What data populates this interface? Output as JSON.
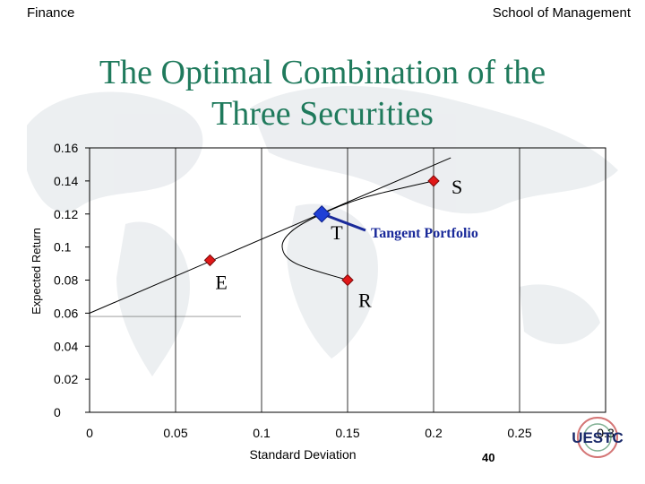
{
  "header": {
    "left": "Finance",
    "right": "School of Management"
  },
  "slide": {
    "title_line1": "The Optimal Combination of the",
    "title_line2": "Three Securities",
    "page_number": "40",
    "logo_text": "UESTC"
  },
  "colors": {
    "title": "#1f7a5c",
    "blue_marker": "#1f3fd6",
    "red_marker": "#e01818",
    "tangent_label": "#1a2a9a"
  },
  "chart_data": {
    "type": "line",
    "title": "",
    "xlabel": "Standard Deviation",
    "ylabel": "Expected Return",
    "xlim": [
      0,
      0.3
    ],
    "ylim": [
      0,
      0.16
    ],
    "x_ticks": [
      0,
      0.05,
      0.1,
      0.15,
      0.2,
      0.25,
      0.3
    ],
    "x_tick_labels": [
      "0",
      "0.05",
      "0.1",
      "0.15",
      "0.2",
      "0.25",
      "0.3"
    ],
    "y_ticks": [
      0,
      0.02,
      0.04,
      0.06,
      0.08,
      0.1,
      0.12,
      0.14,
      0.16
    ],
    "y_tick_labels": [
      "0",
      "0.02",
      "0.04",
      "0.06",
      "0.08",
      "0.1",
      "0.12",
      "0.14",
      "0.16"
    ],
    "grid": "vertical",
    "series": [
      {
        "name": "",
        "kind": "capital-allocation-line",
        "x": [
          0,
          0.21
        ],
        "y": [
          0.06,
          0.154
        ]
      },
      {
        "name": "",
        "kind": "efficient-frontier",
        "x": [
          0.15,
          0.12,
          0.112,
          0.118,
          0.135,
          0.16,
          0.2
        ],
        "y": [
          0.08,
          0.09,
          0.1,
          0.11,
          0.12,
          0.13,
          0.14
        ]
      }
    ],
    "points": [
      {
        "label": "S",
        "x": 0.2,
        "y": 0.14,
        "color": "#e01818"
      },
      {
        "label": "T",
        "x": 0.135,
        "y": 0.12,
        "color": "#1f3fd6"
      },
      {
        "label": "E",
        "x": 0.07,
        "y": 0.092,
        "color": "#e01818"
      },
      {
        "label": "R",
        "x": 0.15,
        "y": 0.08,
        "color": "#e01818"
      }
    ],
    "annotations": [
      {
        "text": "Tangent Portfolio",
        "points_to": "T"
      }
    ]
  }
}
